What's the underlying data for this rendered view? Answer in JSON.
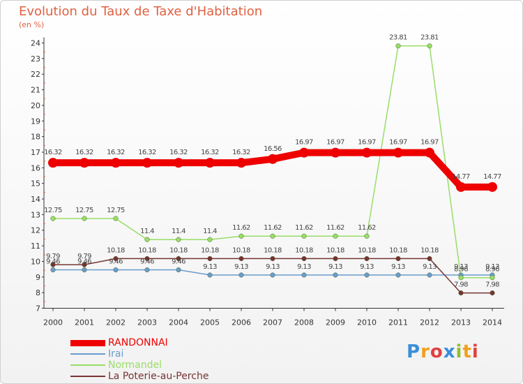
{
  "chart_data": {
    "type": "line",
    "title": "Evolution du Taux de Taxe d'Habitation",
    "subtitle": "(en %)",
    "x": [
      "2000",
      "2001",
      "2002",
      "2003",
      "2004",
      "2005",
      "2006",
      "2007",
      "2008",
      "2009",
      "2010",
      "2011",
      "2012",
      "2013",
      "2014"
    ],
    "ylim": [
      7,
      24
    ],
    "yticks": [
      7,
      8,
      9,
      10,
      11,
      12,
      13,
      14,
      15,
      16,
      17,
      18,
      19,
      20,
      21,
      22,
      23,
      24
    ],
    "grid": false,
    "legend_position": "bottom-left",
    "series": [
      {
        "name": "RANDONNAI",
        "color": "#ee0000",
        "values": [
          16.32,
          16.32,
          16.32,
          16.32,
          16.32,
          16.32,
          16.32,
          16.56,
          16.97,
          16.97,
          16.97,
          16.97,
          16.97,
          14.77,
          14.77
        ],
        "labels": [
          "16.32",
          "16.32",
          "16.32",
          "16.32",
          "16.32",
          "16.32",
          "16.32",
          "16.56",
          "16.97",
          "16.97",
          "16.97",
          "16.97",
          "16.97",
          "14.77",
          "14.77"
        ]
      },
      {
        "name": "Irai",
        "color": "#6a9ccc",
        "values": [
          9.46,
          9.46,
          9.46,
          9.46,
          9.46,
          9.13,
          9.13,
          9.13,
          9.13,
          9.13,
          9.13,
          9.13,
          9.13,
          9.13,
          9.13
        ],
        "labels": [
          "9.46",
          "9.46",
          "9.46",
          "9.46",
          "9.46",
          "9.13",
          "9.13",
          "9.13",
          "9.13",
          "9.13",
          "9.13",
          "9.13",
          "9.13",
          "9.13",
          "9.13"
        ]
      },
      {
        "name": "Normandel",
        "color": "#99dd66",
        "values": [
          12.75,
          12.75,
          12.75,
          11.4,
          11.4,
          11.4,
          11.62,
          11.62,
          11.62,
          11.62,
          11.62,
          23.81,
          23.81,
          8.96,
          8.96
        ],
        "labels": [
          "12.75",
          "12.75",
          "12.75",
          "11.4",
          "11.4",
          "11.4",
          "11.62",
          "11.62",
          "11.62",
          "11.62",
          "11.62",
          "23.81",
          "23.81",
          "8.96",
          "8.96"
        ]
      },
      {
        "name": "La Poterie-au-Perche",
        "color": "#773333",
        "values": [
          9.79,
          9.79,
          10.18,
          10.18,
          10.18,
          10.18,
          10.18,
          10.18,
          10.18,
          10.18,
          10.18,
          10.18,
          10.18,
          7.98,
          7.98
        ],
        "labels": [
          "9.79",
          "9.79",
          "10.18",
          "10.18",
          "10.18",
          "10.18",
          "10.18",
          "10.18",
          "10.18",
          "10.18",
          "10.18",
          "10.18",
          "10.18",
          "7.98",
          "7.98"
        ]
      }
    ]
  },
  "logo": {
    "text": "Proxiti",
    "letters": [
      "P",
      "r",
      "o",
      "x",
      "i",
      "t",
      "i"
    ],
    "colors": [
      "#3b8ed8",
      "#f0a020",
      "#e04040",
      "#3b8ed8",
      "#90c030",
      "#f0a020",
      "#e04040"
    ]
  }
}
